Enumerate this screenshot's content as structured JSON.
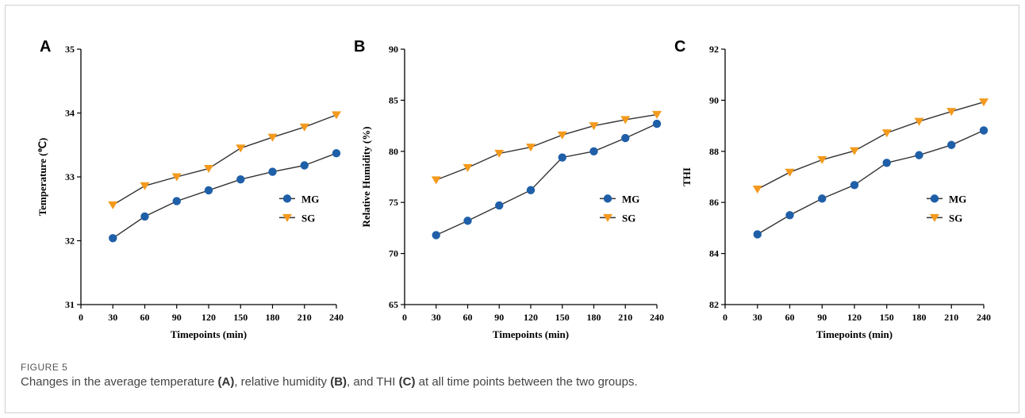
{
  "figure": {
    "label": "FIGURE 5",
    "caption": {
      "t1": "Changes in the average temperature ",
      "a": "(A)",
      "t2": ", relative humidity ",
      "b": "(B)",
      "t3": ", and THI ",
      "c": "(C)",
      "t4": " at all time points between the two groups."
    }
  },
  "colors": {
    "MG": "#1f5fa8",
    "SG": "#f39a1e",
    "axis": "#000000"
  },
  "chart_data": [
    {
      "panel": "A",
      "type": "line",
      "title": "",
      "xlabel": "Timepoints  (min)",
      "ylabel": "Temperature (℃)",
      "xlim": [
        0,
        240
      ],
      "ylim": [
        31,
        35
      ],
      "xticks": [
        0,
        30,
        60,
        90,
        120,
        150,
        180,
        210,
        240
      ],
      "yticks": [
        31,
        32,
        33,
        34,
        35
      ],
      "x": [
        30,
        60,
        90,
        120,
        150,
        180,
        210,
        240
      ],
      "series": [
        {
          "name": "MG",
          "marker": "circle",
          "values": [
            32.04,
            32.38,
            32.62,
            32.79,
            32.96,
            33.08,
            33.18,
            33.37
          ]
        },
        {
          "name": "SG",
          "marker": "triangle-down",
          "values": [
            32.56,
            32.86,
            33.0,
            33.13,
            33.45,
            33.62,
            33.78,
            33.97
          ]
        }
      ],
      "legend": "right"
    },
    {
      "panel": "B",
      "type": "line",
      "title": "",
      "xlabel": "Timepoints (min)",
      "ylabel": "Relative Humidity (%)",
      "xlim": [
        0,
        240
      ],
      "ylim": [
        65,
        90
      ],
      "xticks": [
        0,
        30,
        60,
        90,
        120,
        150,
        180,
        210,
        240
      ],
      "yticks": [
        65,
        70,
        75,
        80,
        85,
        90
      ],
      "x": [
        30,
        60,
        90,
        120,
        150,
        180,
        210,
        240
      ],
      "series": [
        {
          "name": "MG",
          "marker": "circle",
          "values": [
            71.8,
            73.2,
            74.7,
            76.2,
            79.4,
            80.0,
            81.3,
            82.7
          ]
        },
        {
          "name": "SG",
          "marker": "triangle-down",
          "values": [
            77.2,
            78.4,
            79.8,
            80.4,
            81.6,
            82.5,
            83.1,
            83.6
          ]
        }
      ],
      "legend": "right"
    },
    {
      "panel": "C",
      "type": "line",
      "title": "",
      "xlabel": "Timepoints (min)",
      "ylabel": "THI",
      "xlim": [
        0,
        240
      ],
      "ylim": [
        82,
        92
      ],
      "xticks": [
        0,
        30,
        60,
        90,
        120,
        150,
        180,
        210,
        240
      ],
      "yticks": [
        82,
        84,
        86,
        88,
        90,
        92
      ],
      "x": [
        30,
        60,
        90,
        120,
        150,
        180,
        210,
        240
      ],
      "series": [
        {
          "name": "MG",
          "marker": "circle",
          "values": [
            84.75,
            85.5,
            86.15,
            86.68,
            87.55,
            87.85,
            88.25,
            88.82
          ]
        },
        {
          "name": "SG",
          "marker": "triangle-down",
          "values": [
            86.52,
            87.18,
            87.67,
            88.02,
            88.72,
            89.17,
            89.56,
            89.93
          ]
        }
      ],
      "legend": "right"
    }
  ]
}
